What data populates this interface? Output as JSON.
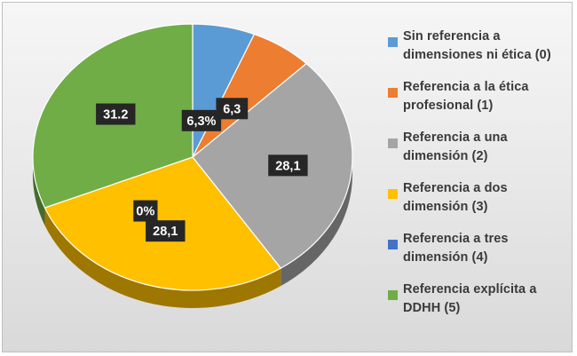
{
  "chart_data": {
    "type": "pie",
    "title": "",
    "categories": [
      "Sin referencia a dimensiones ni ética (0)",
      "Referencia a la ética profesional (1)",
      "Referencia a una dimensión (2)",
      "Referencia a dos dimensión (3)",
      "Referencia a tres dimensión (4)",
      "Referencia explícita a DDHH (5)"
    ],
    "values": [
      6.3,
      6.3,
      28.1,
      28.1,
      0,
      31.2
    ],
    "data_labels": [
      "6,3%",
      "6,3",
      "28,1",
      "28,1",
      "0%",
      "31.2"
    ],
    "colors": [
      "#5b9bd5",
      "#ed7d31",
      "#a5a5a5",
      "#ffc000",
      "#4472c4",
      "#70ad47"
    ],
    "legend_position": "right",
    "three_d": true
  },
  "legend": {
    "items": [
      {
        "line1": "Sin referencia a",
        "line2": "dimensiones ni ética (0)",
        "color": "#5b9bd5"
      },
      {
        "line1": "Referencia a la ética",
        "line2": "profesional (1)",
        "color": "#ed7d31"
      },
      {
        "line1": "Referencia a una",
        "line2": "dimensión (2)",
        "color": "#a5a5a5"
      },
      {
        "line1": "Referencia a dos",
        "line2": "dimensión (3)",
        "color": "#ffc000"
      },
      {
        "line1": "Referencia a tres",
        "line2": "dimensión (4)",
        "color": "#4472c4"
      },
      {
        "line1": "Referencia explícita a",
        "line2": "DDHH (5)",
        "color": "#70ad47"
      }
    ]
  }
}
